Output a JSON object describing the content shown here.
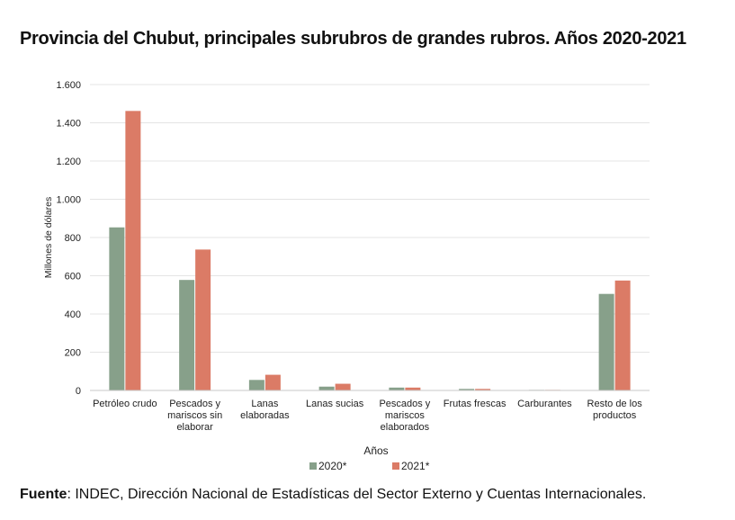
{
  "title": "Provincia del Chubut, principales subrubros de grandes rubros. Años 2020-2021",
  "source": {
    "label": "Fuente",
    "text": ": INDEC, Dirección Nacional de Estadísticas del Sector Externo y Cuentas Internacionales."
  },
  "colors": {
    "series_2020": "#87a08a",
    "series_2021": "#db7b66",
    "grid": "#e4e4e4",
    "axis": "#c8c8c8"
  },
  "chart_data": {
    "type": "bar",
    "ylabel": "Millones de dólares",
    "xlabel": "Años",
    "ylim": [
      0,
      1600
    ],
    "yticks": [
      0,
      200,
      400,
      600,
      800,
      1000,
      1200,
      1400,
      1600
    ],
    "ytick_labels": [
      "0",
      "200",
      "400",
      "600",
      "800",
      "1.000",
      "1.200",
      "1.400",
      "1.600"
    ],
    "grid": true,
    "legend_position": "bottom-center",
    "categories": [
      [
        "Petróleo crudo"
      ],
      [
        "Pescados y",
        "mariscos sin",
        "elaborar"
      ],
      [
        "Lanas",
        "elaboradas"
      ],
      [
        "Lanas sucias"
      ],
      [
        "Pescados y",
        "mariscos",
        "elaborados"
      ],
      [
        "Frutas frescas"
      ],
      [
        "Carburantes"
      ],
      [
        "Resto de los",
        "productos"
      ]
    ],
    "series": [
      {
        "name": "2020*",
        "values": [
          853,
          578,
          55,
          20,
          15,
          8,
          3,
          505
        ]
      },
      {
        "name": "2021*",
        "values": [
          1462,
          737,
          82,
          35,
          15,
          8,
          3,
          575
        ]
      }
    ]
  }
}
